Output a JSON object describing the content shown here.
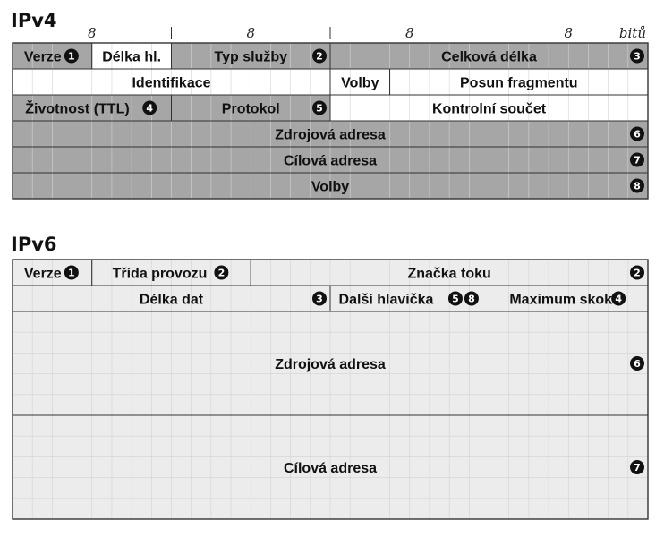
{
  "ipv4": {
    "title": "IPv4",
    "bit_groups": [
      "8",
      "8",
      "8",
      "8"
    ],
    "bits_unit": "bitů",
    "rows": [
      [
        {
          "label": "Verze",
          "marker": "1",
          "span": [
            0,
            4
          ],
          "shade": "gray",
          "markerStyle": "adjacent"
        },
        {
          "label": "Délka hl.",
          "span": [
            4,
            8
          ],
          "shade": "white"
        },
        {
          "label": "Typ služby",
          "marker": "2",
          "span": [
            8,
            16
          ],
          "shade": "gray",
          "markerStyle": "right"
        },
        {
          "label": "Celková délka",
          "marker": "3",
          "span": [
            16,
            32
          ],
          "shade": "gray",
          "markerStyle": "right"
        }
      ],
      [
        {
          "label": "Identifikace",
          "span": [
            0,
            16
          ],
          "shade": "white"
        },
        {
          "label": "Volby",
          "span": [
            16,
            19
          ],
          "shade": "white"
        },
        {
          "label": "Posun fragmentu",
          "span": [
            19,
            32
          ],
          "shade": "white"
        }
      ],
      [
        {
          "label": "Životnost (TTL)",
          "marker": "4",
          "span": [
            0,
            8
          ],
          "shade": "gray",
          "markerStyle": "adjacent"
        },
        {
          "label": "Protokol",
          "marker": "5",
          "span": [
            8,
            16
          ],
          "shade": "gray",
          "markerStyle": "right"
        },
        {
          "label": "Kontrolní součet",
          "span": [
            16,
            32
          ],
          "shade": "white"
        }
      ],
      [
        {
          "label": "Zdrojová adresa",
          "marker": "6",
          "span": [
            0,
            32
          ],
          "shade": "gray",
          "markerStyle": "right"
        }
      ],
      [
        {
          "label": "Cílová adresa",
          "marker": "7",
          "span": [
            0,
            32
          ],
          "shade": "gray",
          "markerStyle": "right"
        }
      ],
      [
        {
          "label": "Volby",
          "marker": "8",
          "span": [
            0,
            32
          ],
          "shade": "gray",
          "markerStyle": "right",
          "open": true
        }
      ]
    ]
  },
  "ipv6": {
    "title": "IPv6",
    "rows": [
      {
        "height": 1,
        "fields": [
          {
            "label": "Verze",
            "marker": "1",
            "span": [
              0,
              4
            ],
            "shade": "gray",
            "markerStyle": "adjacent"
          },
          {
            "label": "Třída provozu",
            "marker": "2",
            "span": [
              4,
              12
            ],
            "shade": "gray",
            "markerStyle": "adjacent"
          },
          {
            "label": "Značka toku",
            "marker": "2",
            "span": [
              12,
              32
            ],
            "shade": "gray",
            "markerStyle": "right"
          }
        ]
      },
      {
        "height": 1,
        "fields": [
          {
            "label": "Délka dat",
            "marker": "3",
            "span": [
              0,
              16
            ],
            "shade": "gray",
            "markerStyle": "right"
          },
          {
            "label": "Další hlavička",
            "markers": [
              "5",
              "8"
            ],
            "span": [
              16,
              24
            ],
            "shade": "gray",
            "markerStyle": "adjacent"
          },
          {
            "label": "Maximum skoků",
            "marker": "4",
            "span": [
              24,
              32
            ],
            "shade": "gray",
            "markerStyle": "adjacent"
          }
        ]
      },
      {
        "height": 4,
        "fields": [
          {
            "label": "Zdrojová adresa",
            "marker": "6",
            "span": [
              0,
              32
            ],
            "shade": "gray",
            "markerStyle": "right"
          }
        ]
      },
      {
        "height": 4,
        "fields": [
          {
            "label": "Cílová adresa",
            "marker": "7",
            "span": [
              0,
              32
            ],
            "shade": "gray",
            "markerStyle": "right"
          }
        ]
      }
    ]
  },
  "colors": {
    "gray": "#a6a6a6",
    "light_gray": "#ececec",
    "white": "#ffffff",
    "grid": "#d3d3d3",
    "border": "#333333",
    "marker": "#111111"
  }
}
